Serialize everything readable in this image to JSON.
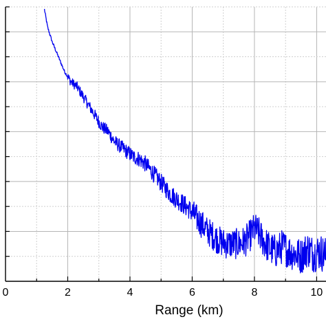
{
  "chart_data": {
    "type": "line",
    "title": "",
    "xlabel": "Range (km)",
    "ylabel": "",
    "xlim": [
      0,
      10.3
    ],
    "ylim": [
      0,
      11
    ],
    "grid": true,
    "x_ticks": [
      0,
      2,
      4,
      6,
      8,
      10
    ],
    "x_tick_labels": [
      "0",
      "2",
      "4",
      "6",
      "8",
      "10"
    ],
    "y_ticks": [
      0,
      1,
      2,
      3,
      4,
      5,
      6,
      7,
      8,
      9,
      10,
      11
    ],
    "series": [
      {
        "color": "#0000ee",
        "x": [
          1.25,
          1.35,
          1.5,
          1.7,
          1.9,
          2.1,
          2.3,
          2.5,
          2.7,
          2.9,
          3.1,
          3.3,
          3.5,
          3.7,
          3.9,
          4.1,
          4.3,
          4.5,
          4.7,
          4.9,
          5.1,
          5.3,
          5.5,
          5.7,
          5.9,
          6.1,
          6.3,
          6.5,
          6.7,
          6.9,
          7.1,
          7.3,
          7.5,
          7.7,
          7.9,
          8.0,
          8.1,
          8.3,
          8.5,
          8.7,
          8.9,
          9.1,
          9.3,
          9.5,
          9.7,
          9.9,
          10.1,
          10.3
        ],
        "y": [
          10.9,
          10.2,
          9.6,
          9.0,
          8.4,
          8.0,
          7.8,
          7.4,
          7.0,
          6.6,
          6.2,
          6.0,
          5.6,
          5.4,
          5.2,
          5.0,
          4.9,
          4.7,
          4.4,
          4.1,
          3.8,
          3.5,
          3.3,
          3.1,
          2.9,
          2.6,
          2.3,
          2.0,
          1.8,
          1.6,
          1.5,
          1.5,
          1.5,
          1.6,
          1.9,
          2.1,
          2.0,
          1.6,
          1.3,
          1.2,
          1.4,
          1.2,
          1.1,
          1.0,
          1.3,
          1.1,
          1.2,
          1.0
        ]
      }
    ]
  }
}
